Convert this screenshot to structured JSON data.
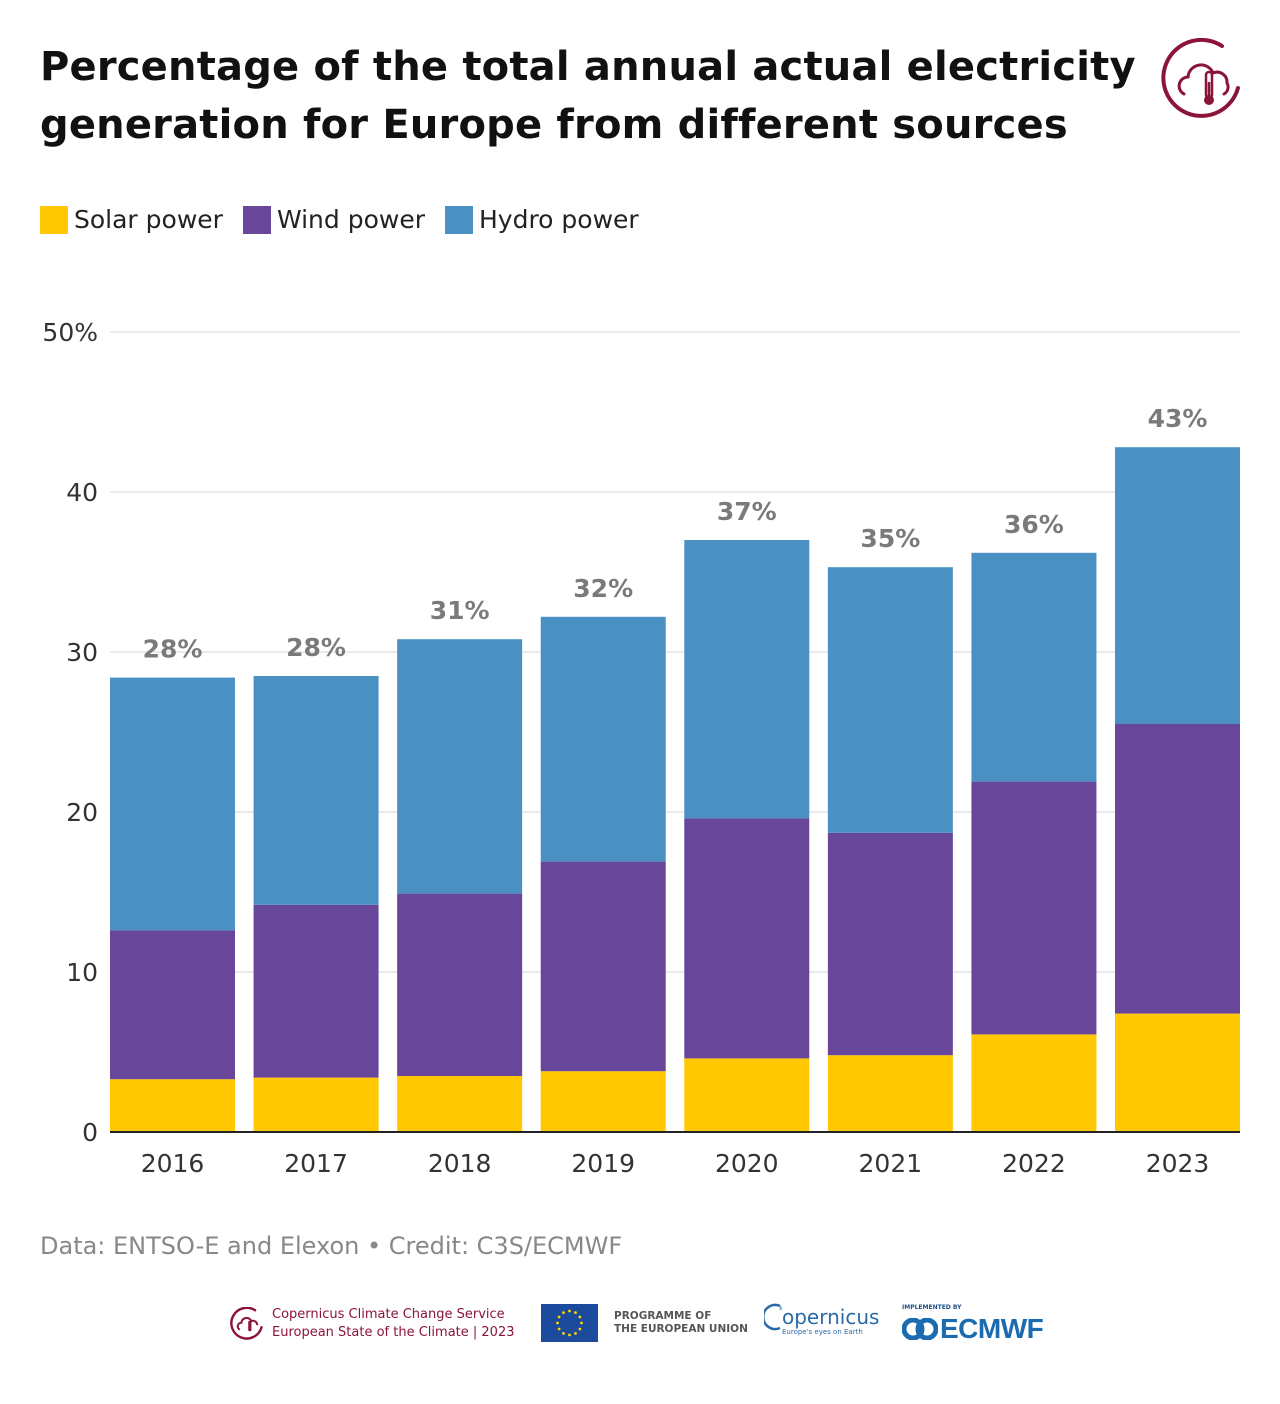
{
  "title": "Percentage of the total annual actual electricity generation for Europe from different sources",
  "legend": {
    "solar_label": "Solar power",
    "wind_label": "Wind power",
    "hydro_label": "Hydro power"
  },
  "colors": {
    "solar": "#ffc800",
    "wind": "#68479a",
    "hydro": "#4b90c2",
    "total_label": "#7a7a7a",
    "brand": "#8a1538"
  },
  "chart_data": {
    "type": "bar",
    "stacked": true,
    "categories": [
      "2016",
      "2017",
      "2018",
      "2019",
      "2020",
      "2021",
      "2022",
      "2023"
    ],
    "series": [
      {
        "name": "Solar power",
        "values": [
          3.3,
          3.4,
          3.5,
          3.8,
          4.6,
          4.8,
          6.1,
          7.4
        ]
      },
      {
        "name": "Wind power",
        "values": [
          9.3,
          10.8,
          11.4,
          13.1,
          15.0,
          13.9,
          15.8,
          18.1
        ]
      },
      {
        "name": "Hydro power",
        "values": [
          15.8,
          14.3,
          15.9,
          15.3,
          17.4,
          16.6,
          14.3,
          17.3
        ]
      }
    ],
    "total_labels": [
      "28%",
      "28%",
      "31%",
      "32%",
      "37%",
      "35%",
      "36%",
      "43%"
    ],
    "yticks": [
      "0",
      "10",
      "20",
      "30",
      "40",
      "50%"
    ],
    "ylim": [
      0,
      50
    ],
    "grid": true,
    "legend_position": "top-left"
  },
  "source": "Data: ENTSO-E and Elexon • Credit: C3S/ECMWF",
  "footer": {
    "c3s_line1": "Copernicus Climate Change Service",
    "c3s_line2": "European State of the Climate | 2023",
    "programme_line1": "PROGRAMME OF",
    "programme_line2": "THE EUROPEAN UNION",
    "copernicus_text": "opernicus",
    "copernicus_sub": "Europe's eyes on Earth",
    "ecmwf_small": "IMPLEMENTED BY",
    "ecmwf_text": "ECMWF"
  }
}
